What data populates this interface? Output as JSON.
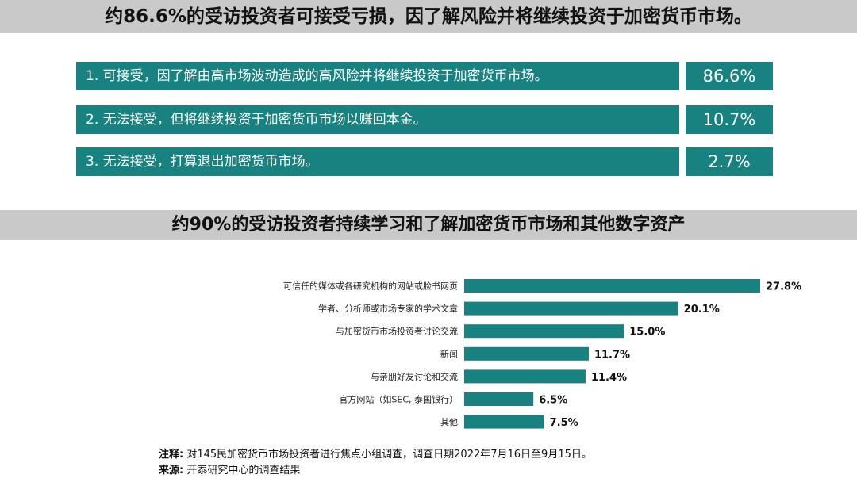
{
  "panel1": {
    "title": "约86.6%的受访投资者可接受亏损，因了解风险并将继续投资于加密货币市场。",
    "rows": [
      {
        "label": "1.  可接受，因了解由高市场波动造成的高风险并将继续投资于加密货币市场。",
        "value": "86.6%"
      },
      {
        "label": "2.  无法接受，但将继续投资于加密货币市场以赚回本金。",
        "value": "10.7%"
      },
      {
        "label": "3.  无法接受，打算退出加密货币市场。",
        "value": "2.7%"
      }
    ],
    "color": "#17827f"
  },
  "chart_data": {
    "type": "bar",
    "orientation": "horizontal",
    "title": "约90%的受访投资者持续学习和了解加密货币市场和其他数字资产",
    "categories": [
      "可信任的媒体或各研究机构的网站或脸书网页",
      "学者、分析师或市场专家的学术文章",
      "与加密货币市场投资者讨论交流",
      "新闻",
      "与亲朋好友讨论和交流",
      "官方网站（如SEC, 泰国银行）",
      "其他"
    ],
    "values": [
      27.8,
      20.1,
      15.0,
      11.7,
      11.4,
      6.5,
      7.5
    ],
    "value_labels": [
      "27.8%",
      "20.1%",
      "15.0%",
      "11.7%",
      "11.4%",
      "6.5%",
      "7.5%"
    ],
    "xlim": [
      0,
      27.8
    ],
    "grid": false,
    "legend": "none",
    "color": "#17827f"
  },
  "notes": {
    "note_label": "注释:",
    "note_text": "对145民加密货币市场投资者进行焦点小组调查，调查日期2022年7月16日至9月15日。",
    "source_label": "来源:",
    "source_text": "开泰研究中心的调查结果"
  }
}
